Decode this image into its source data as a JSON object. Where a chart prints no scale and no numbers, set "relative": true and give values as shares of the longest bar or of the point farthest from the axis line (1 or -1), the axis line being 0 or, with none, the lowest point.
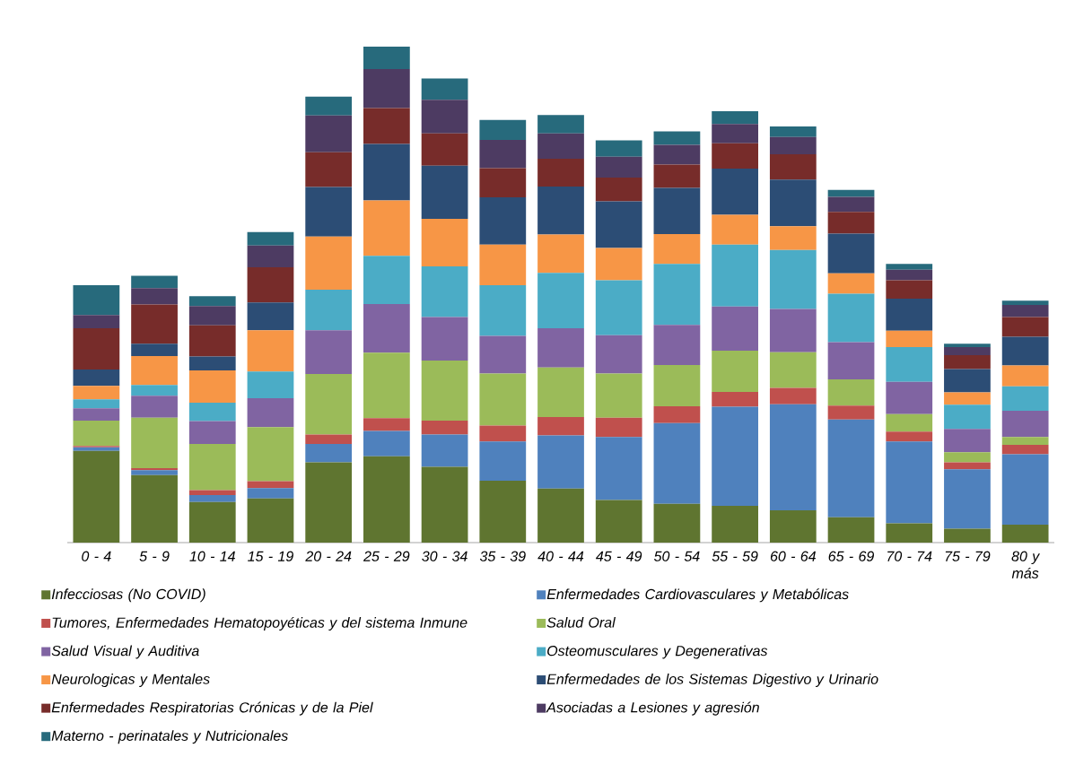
{
  "chart_data": {
    "type": "bar",
    "stacked": true,
    "relative": true,
    "legend": "bottom",
    "categories": [
      "0 - 4",
      "5 - 9",
      "10 - 14",
      "15 - 19",
      "20 - 24",
      "25 - 29",
      "30 - 34",
      "35 - 39",
      "40 - 44",
      "45 - 49",
      "50 - 54",
      "55 - 59",
      "60 - 64",
      "65 - 69",
      "70 - 74",
      "75 - 79",
      "80 y más"
    ],
    "series": [
      {
        "name": "Infecciosas (No COVID)",
        "color": "#5f7530",
        "values": [
          0.185,
          0.136,
          0.082,
          0.089,
          0.162,
          0.174,
          0.153,
          0.125,
          0.109,
          0.086,
          0.078,
          0.074,
          0.065,
          0.051,
          0.039,
          0.028,
          0.036
        ]
      },
      {
        "name": "Enfermedades Cardiovasculares y Metabólicas",
        "color": "#4f81bd",
        "values": [
          0.007,
          0.01,
          0.014,
          0.021,
          0.037,
          0.051,
          0.065,
          0.079,
          0.107,
          0.127,
          0.163,
          0.2,
          0.214,
          0.197,
          0.165,
          0.12,
          0.142
        ]
      },
      {
        "name": "Tumores, Enfermedades Hematopoyéticas y del sistema Inmune",
        "color": "#c0504d",
        "values": [
          0.003,
          0.004,
          0.01,
          0.014,
          0.019,
          0.026,
          0.028,
          0.032,
          0.037,
          0.039,
          0.034,
          0.03,
          0.033,
          0.028,
          0.02,
          0.014,
          0.019
        ]
      },
      {
        "name": "Salud Oral",
        "color": "#9bbb59",
        "values": [
          0.051,
          0.102,
          0.093,
          0.109,
          0.122,
          0.132,
          0.121,
          0.105,
          0.1,
          0.089,
          0.083,
          0.083,
          0.072,
          0.053,
          0.035,
          0.02,
          0.016
        ]
      },
      {
        "name": "Salud Visual y Auditiva",
        "color": "#8064a2",
        "values": [
          0.025,
          0.044,
          0.046,
          0.058,
          0.088,
          0.098,
          0.088,
          0.076,
          0.079,
          0.077,
          0.081,
          0.089,
          0.087,
          0.075,
          0.065,
          0.047,
          0.053
        ]
      },
      {
        "name": "Osteomusculares y Degenerativas",
        "color": "#4bacc6",
        "values": [
          0.018,
          0.022,
          0.037,
          0.054,
          0.082,
          0.097,
          0.102,
          0.102,
          0.112,
          0.111,
          0.123,
          0.125,
          0.119,
          0.098,
          0.07,
          0.049,
          0.049
        ]
      },
      {
        "name": "Neurologicas y Mentales",
        "color": "#f79646",
        "values": [
          0.027,
          0.058,
          0.065,
          0.083,
          0.107,
          0.112,
          0.096,
          0.082,
          0.077,
          0.065,
          0.06,
          0.06,
          0.048,
          0.041,
          0.033,
          0.025,
          0.042
        ]
      },
      {
        "name": "Enfermedades de los Sistemas Digestivo y Urinario",
        "color": "#2c4d75",
        "values": [
          0.033,
          0.025,
          0.028,
          0.056,
          0.1,
          0.114,
          0.107,
          0.095,
          0.097,
          0.094,
          0.093,
          0.093,
          0.094,
          0.08,
          0.065,
          0.047,
          0.058
        ]
      },
      {
        "name": "Enfermedades Respiratorias Crónicas y de la Piel",
        "color": "#772c2a",
        "values": [
          0.083,
          0.079,
          0.063,
          0.071,
          0.07,
          0.072,
          0.065,
          0.059,
          0.056,
          0.048,
          0.047,
          0.051,
          0.051,
          0.044,
          0.037,
          0.028,
          0.04
        ]
      },
      {
        "name": "Asociadas a Lesiones y agresión",
        "color": "#4d3b62",
        "values": [
          0.027,
          0.033,
          0.039,
          0.044,
          0.074,
          0.079,
          0.068,
          0.057,
          0.051,
          0.042,
          0.04,
          0.039,
          0.035,
          0.03,
          0.021,
          0.016,
          0.024
        ]
      },
      {
        "name": "Materno - perinatales y Nutricionales",
        "color": "#276a7c",
        "values": [
          0.06,
          0.025,
          0.02,
          0.027,
          0.038,
          0.045,
          0.043,
          0.04,
          0.037,
          0.033,
          0.027,
          0.026,
          0.021,
          0.014,
          0.012,
          0.007,
          0.009
        ]
      }
    ]
  }
}
